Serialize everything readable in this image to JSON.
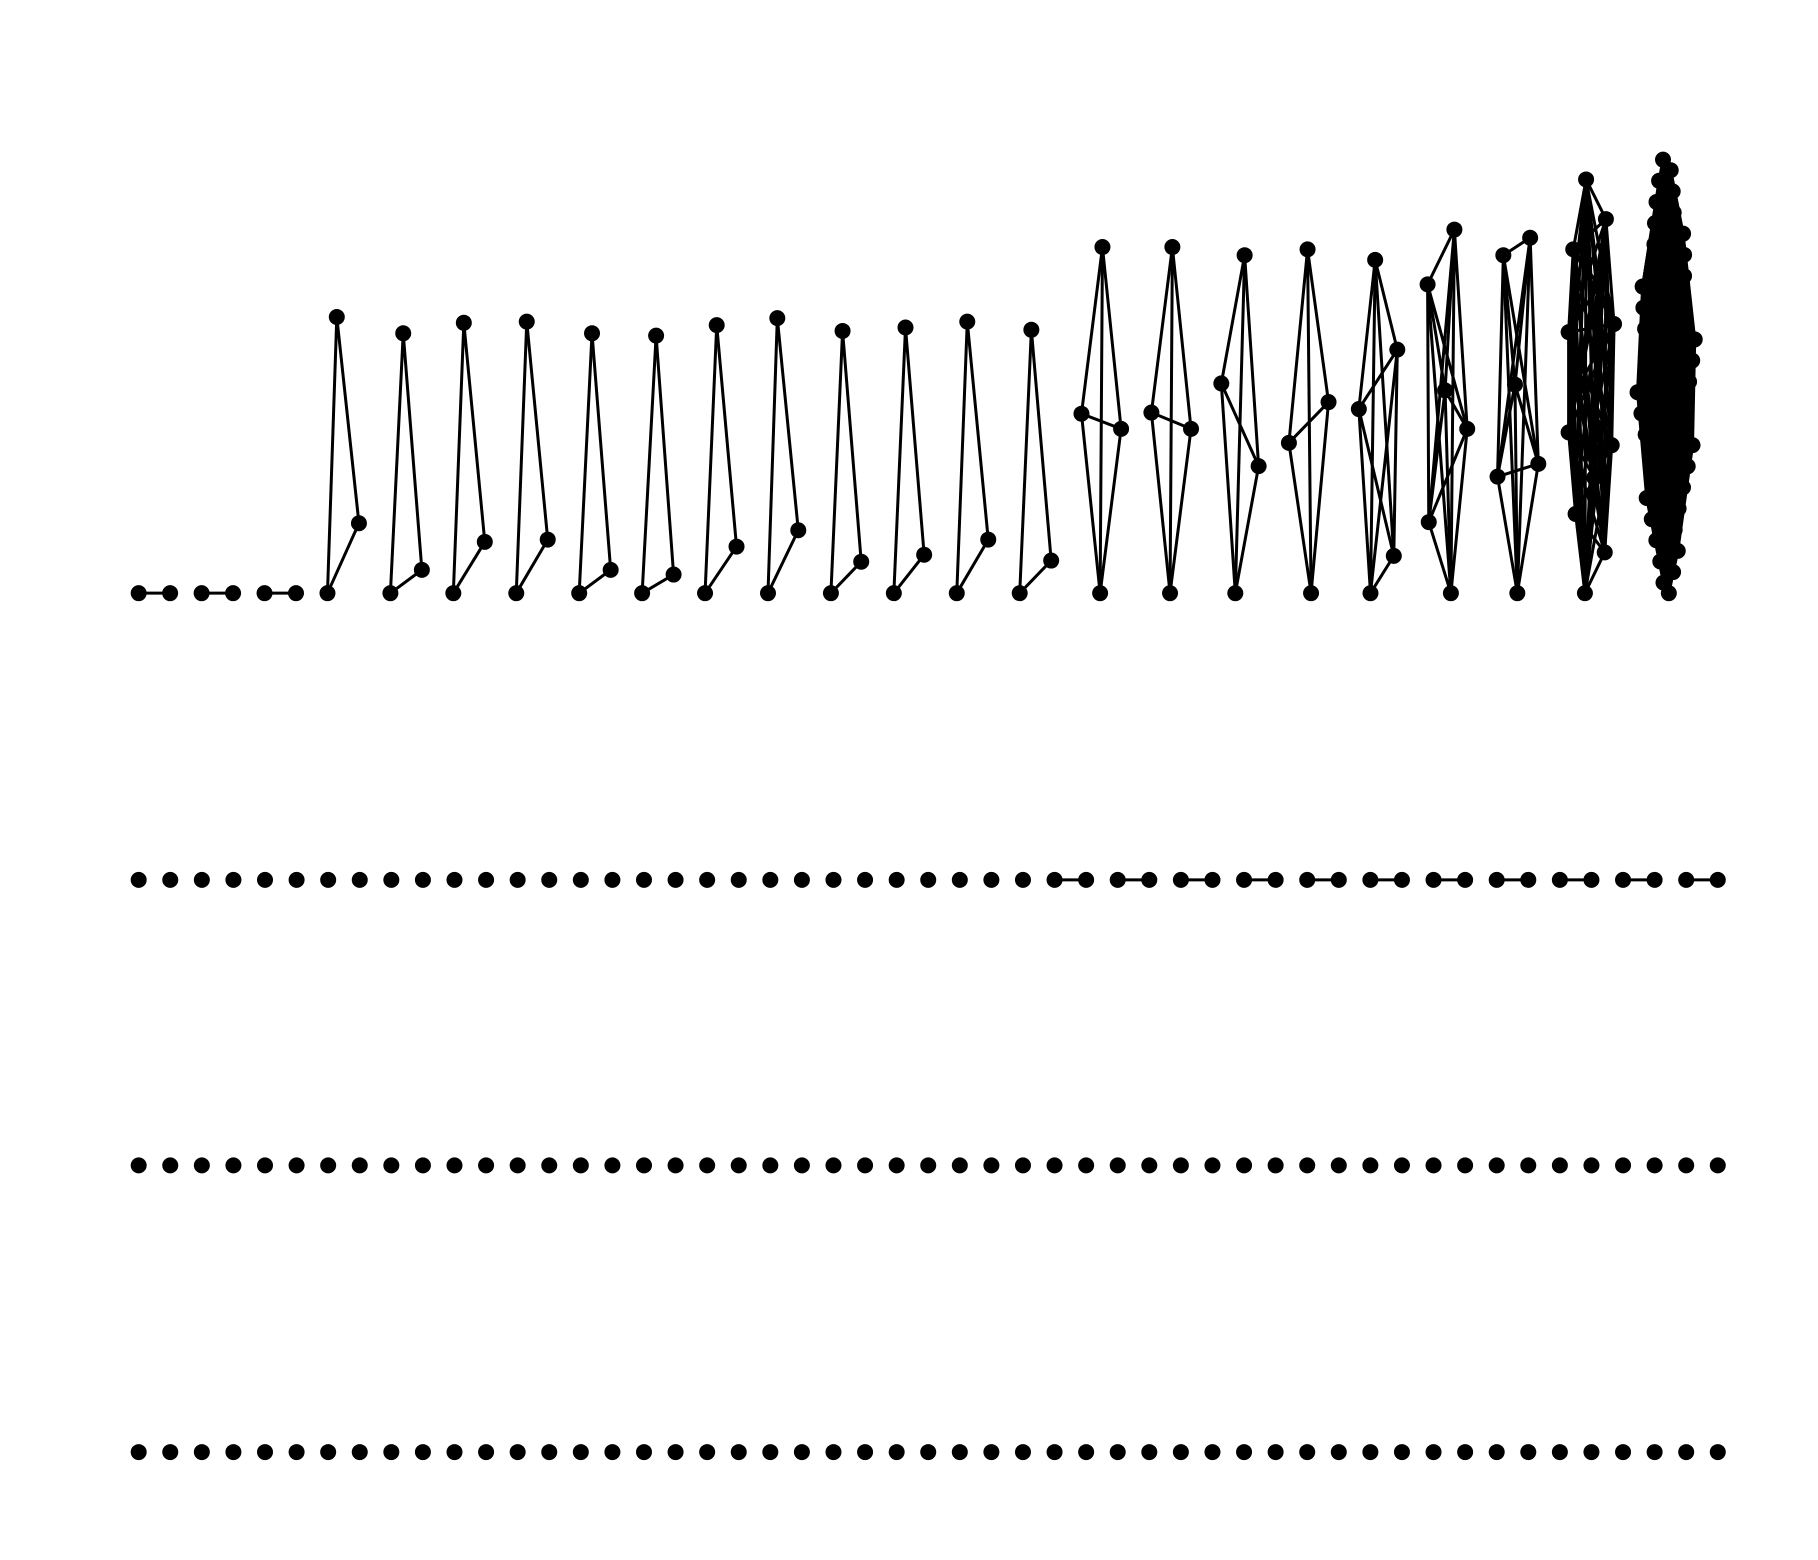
{
  "diagram": {
    "kind": "graph-sequence",
    "description_visible_text": "",
    "node_color": "#000000",
    "edge_color": "#000000",
    "background": "#ffffff",
    "rows": [
      {
        "row": 1,
        "components": [
          {
            "type": "edge-pair"
          },
          {
            "type": "edge-pair"
          },
          {
            "type": "edge-pair"
          },
          {
            "type": "triangle"
          },
          {
            "type": "triangle"
          },
          {
            "type": "triangle"
          },
          {
            "type": "triangle"
          },
          {
            "type": "triangle"
          },
          {
            "type": "triangle"
          },
          {
            "type": "triangle"
          },
          {
            "type": "triangle"
          },
          {
            "type": "triangle"
          },
          {
            "type": "triangle"
          },
          {
            "type": "triangle"
          },
          {
            "type": "triangle"
          },
          {
            "type": "k4"
          },
          {
            "type": "k4"
          },
          {
            "type": "k4"
          },
          {
            "type": "k4"
          },
          {
            "type": "k5"
          },
          {
            "type": "k6"
          },
          {
            "type": "k6"
          },
          {
            "type": "dense-cluster"
          },
          {
            "type": "very-dense-cluster"
          }
        ]
      },
      {
        "row": 2,
        "isolated_nodes": 29,
        "pairs": 11
      },
      {
        "row": 3,
        "isolated_nodes": 51
      },
      {
        "row": 4,
        "isolated_nodes": 51
      }
    ]
  }
}
